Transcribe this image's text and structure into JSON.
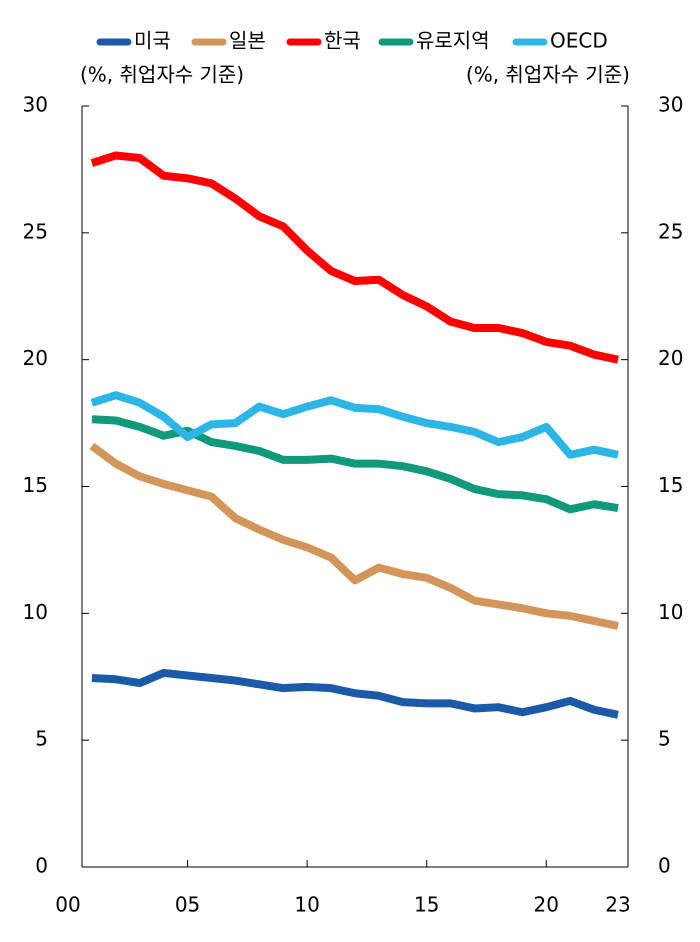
{
  "chart_data": {
    "type": "line",
    "y_label": "(%, 취업자수 기준)",
    "y2_label": "(%, 취업자수 기준)",
    "x": [
      2001,
      2002,
      2003,
      2004,
      2005,
      2006,
      2007,
      2008,
      2009,
      2010,
      2011,
      2012,
      2013,
      2014,
      2015,
      2016,
      2017,
      2018,
      2019,
      2020,
      2021,
      2022,
      2023
    ],
    "series": [
      {
        "name": "미국",
        "color": "#1a5aa8",
        "values": [
          7.45,
          7.4,
          7.25,
          7.65,
          7.55,
          7.45,
          7.35,
          7.2,
          7.05,
          7.1,
          7.05,
          6.85,
          6.75,
          6.5,
          6.45,
          6.45,
          6.25,
          6.3,
          6.1,
          6.3,
          6.55,
          6.2,
          6.0
        ]
      },
      {
        "name": "일본",
        "color": "#d4955a",
        "values": [
          16.6,
          15.9,
          15.4,
          15.1,
          14.85,
          14.6,
          13.75,
          13.3,
          12.9,
          12.6,
          12.2,
          11.3,
          11.8,
          11.55,
          11.4,
          11.0,
          10.5,
          10.35,
          10.2,
          10.0,
          9.9,
          9.7,
          9.5
        ]
      },
      {
        "name": "한국",
        "color": "#ff0000",
        "values": [
          27.75,
          28.05,
          27.95,
          27.25,
          27.15,
          26.95,
          26.35,
          25.65,
          25.25,
          24.3,
          23.5,
          23.1,
          23.15,
          22.55,
          22.1,
          21.5,
          21.25,
          21.25,
          21.05,
          20.7,
          20.55,
          20.2,
          20.0
        ]
      },
      {
        "name": "유로지역",
        "color": "#10997a",
        "values": [
          17.65,
          17.6,
          17.35,
          17.0,
          17.2,
          16.75,
          16.6,
          16.4,
          16.05,
          16.05,
          16.1,
          15.9,
          15.9,
          15.8,
          15.6,
          15.3,
          14.9,
          14.7,
          14.65,
          14.5,
          14.1,
          14.3,
          14.15
        ]
      },
      {
        "name": "OECD",
        "color": "#2cb6e6",
        "values": [
          18.3,
          18.6,
          18.3,
          17.75,
          16.95,
          17.45,
          17.5,
          18.15,
          17.85,
          18.15,
          18.4,
          18.1,
          18.05,
          17.75,
          17.5,
          17.35,
          17.15,
          16.75,
          16.95,
          17.35,
          16.25,
          16.45,
          16.25
        ]
      }
    ],
    "xlim": [
      2000,
      2023
    ],
    "xticks": [
      {
        "value": 2000,
        "label": "00"
      },
      {
        "value": 2005,
        "label": "05"
      },
      {
        "value": 2010,
        "label": "10"
      },
      {
        "value": 2015,
        "label": "15"
      },
      {
        "value": 2020,
        "label": "20"
      },
      {
        "value": 2023,
        "label": "23"
      }
    ],
    "ylim": [
      0,
      30
    ],
    "yticks": [
      0,
      5,
      10,
      15,
      20,
      25,
      30
    ],
    "y2lim": [
      0,
      30
    ],
    "y2ticks": [
      0,
      5,
      10,
      15,
      20,
      25,
      30
    ],
    "legend": "top"
  }
}
